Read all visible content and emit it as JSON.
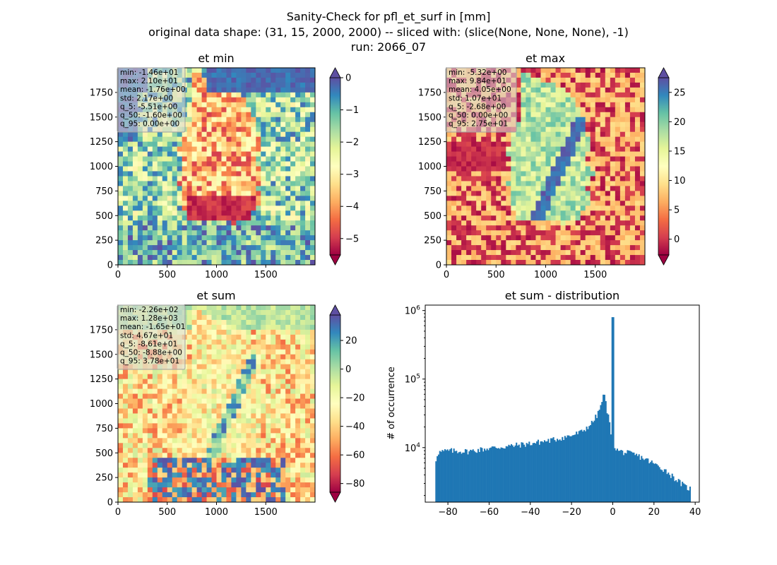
{
  "suptitle": {
    "line1": "Sanity-Check for pfl_et_surf in [mm]",
    "line2": "original data shape: (31, 15, 2000, 2000) -- sliced with: (slice(None, None, None), -1)",
    "line3": "run: 2066_07"
  },
  "colormap": "Spectral",
  "chart_data": [
    {
      "type": "heatmap",
      "title": "et min",
      "xlim": [
        0,
        2000
      ],
      "ylim": [
        0,
        2000
      ],
      "xticks": [
        0,
        500,
        1000,
        1500
      ],
      "yticks": [
        0,
        250,
        500,
        750,
        1000,
        1250,
        1500,
        1750
      ],
      "colorbar": {
        "range": [
          -5.51,
          0
        ],
        "ticks": [
          0,
          -1,
          -2,
          -3,
          -4,
          -5
        ],
        "extend": "both"
      },
      "stats": [
        "min: -1.46e+01",
        "max: 2.10e+01",
        "mean: -1.76e+00",
        "std: 2.17e+00",
        "q_5: -5.51e+00",
        "q_50: -1.60e+00",
        "q_95: 0.00e+00"
      ]
    },
    {
      "type": "heatmap",
      "title": "et max",
      "xlim": [
        0,
        2000
      ],
      "ylim": [
        0,
        2000
      ],
      "xticks": [
        0,
        500,
        1000,
        1500
      ],
      "yticks": [
        0,
        250,
        500,
        750,
        1000,
        1250,
        1500,
        1750
      ],
      "colorbar": {
        "range": [
          -2.68,
          27.5
        ],
        "ticks": [
          0,
          5,
          10,
          15,
          20,
          25
        ],
        "extend": "both"
      },
      "stats": [
        "min: -5.32e+00",
        "max: 9.84e+01",
        "mean: 4.05e+00",
        "std: 1.07e+01",
        "q_5: -2.68e+00",
        "q_50: 0.00e+00",
        "q_95: 2.75e+01"
      ]
    },
    {
      "type": "heatmap",
      "title": "et sum",
      "xlim": [
        0,
        2000
      ],
      "ylim": [
        0,
        2000
      ],
      "xticks": [
        0,
        500,
        1000,
        1500
      ],
      "yticks": [
        0,
        250,
        500,
        750,
        1000,
        1250,
        1500,
        1750
      ],
      "colorbar": {
        "range": [
          -86.1,
          37.8
        ],
        "ticks": [
          20,
          0,
          -20,
          -40,
          -60,
          -80
        ],
        "extend": "both"
      },
      "stats": [
        "min: -2.26e+02",
        "max: 1.28e+03",
        "mean: -1.65e+01",
        "std: 4.67e+01",
        "q_5: -8.61e+01",
        "q_50: -8.88e+00",
        "q_95: 3.78e+01"
      ]
    },
    {
      "type": "bar",
      "title": "et sum - distribution",
      "xlabel": "",
      "ylabel": "# of occurrence",
      "yscale": "log",
      "xlim": [
        -91,
        42
      ],
      "ylim": [
        1600,
        1200000
      ],
      "xticks": [
        -80,
        -60,
        -40,
        -20,
        0,
        20,
        40
      ],
      "yticks": [
        {
          "value": 10000,
          "base": "10",
          "exp": "4"
        },
        {
          "value": 100000,
          "base": "10",
          "exp": "5"
        },
        {
          "value": 1000000,
          "base": "10",
          "exp": "6"
        }
      ],
      "bin_range": [
        -86.1,
        37.8
      ],
      "bin_count": 200,
      "color": "#1f77b4",
      "profile": {
        "x": [
          -86.1,
          -85,
          -80,
          -70,
          -60,
          -50,
          -40,
          -30,
          -20,
          -15,
          -10,
          -7,
          -5,
          -4.2,
          -3,
          -1.5,
          -0.7,
          0,
          0.7,
          2,
          5,
          10,
          15,
          20,
          25,
          30,
          35,
          37.8
        ],
        "y": [
          6000,
          8500,
          9000,
          8800,
          9800,
          10500,
          11500,
          12800,
          15000,
          17000,
          23000,
          32000,
          50000,
          62000,
          38000,
          22000,
          15000,
          800000,
          11000,
          9200,
          8600,
          8000,
          7000,
          5800,
          4800,
          3600,
          2700,
          2500
        ]
      }
    }
  ]
}
